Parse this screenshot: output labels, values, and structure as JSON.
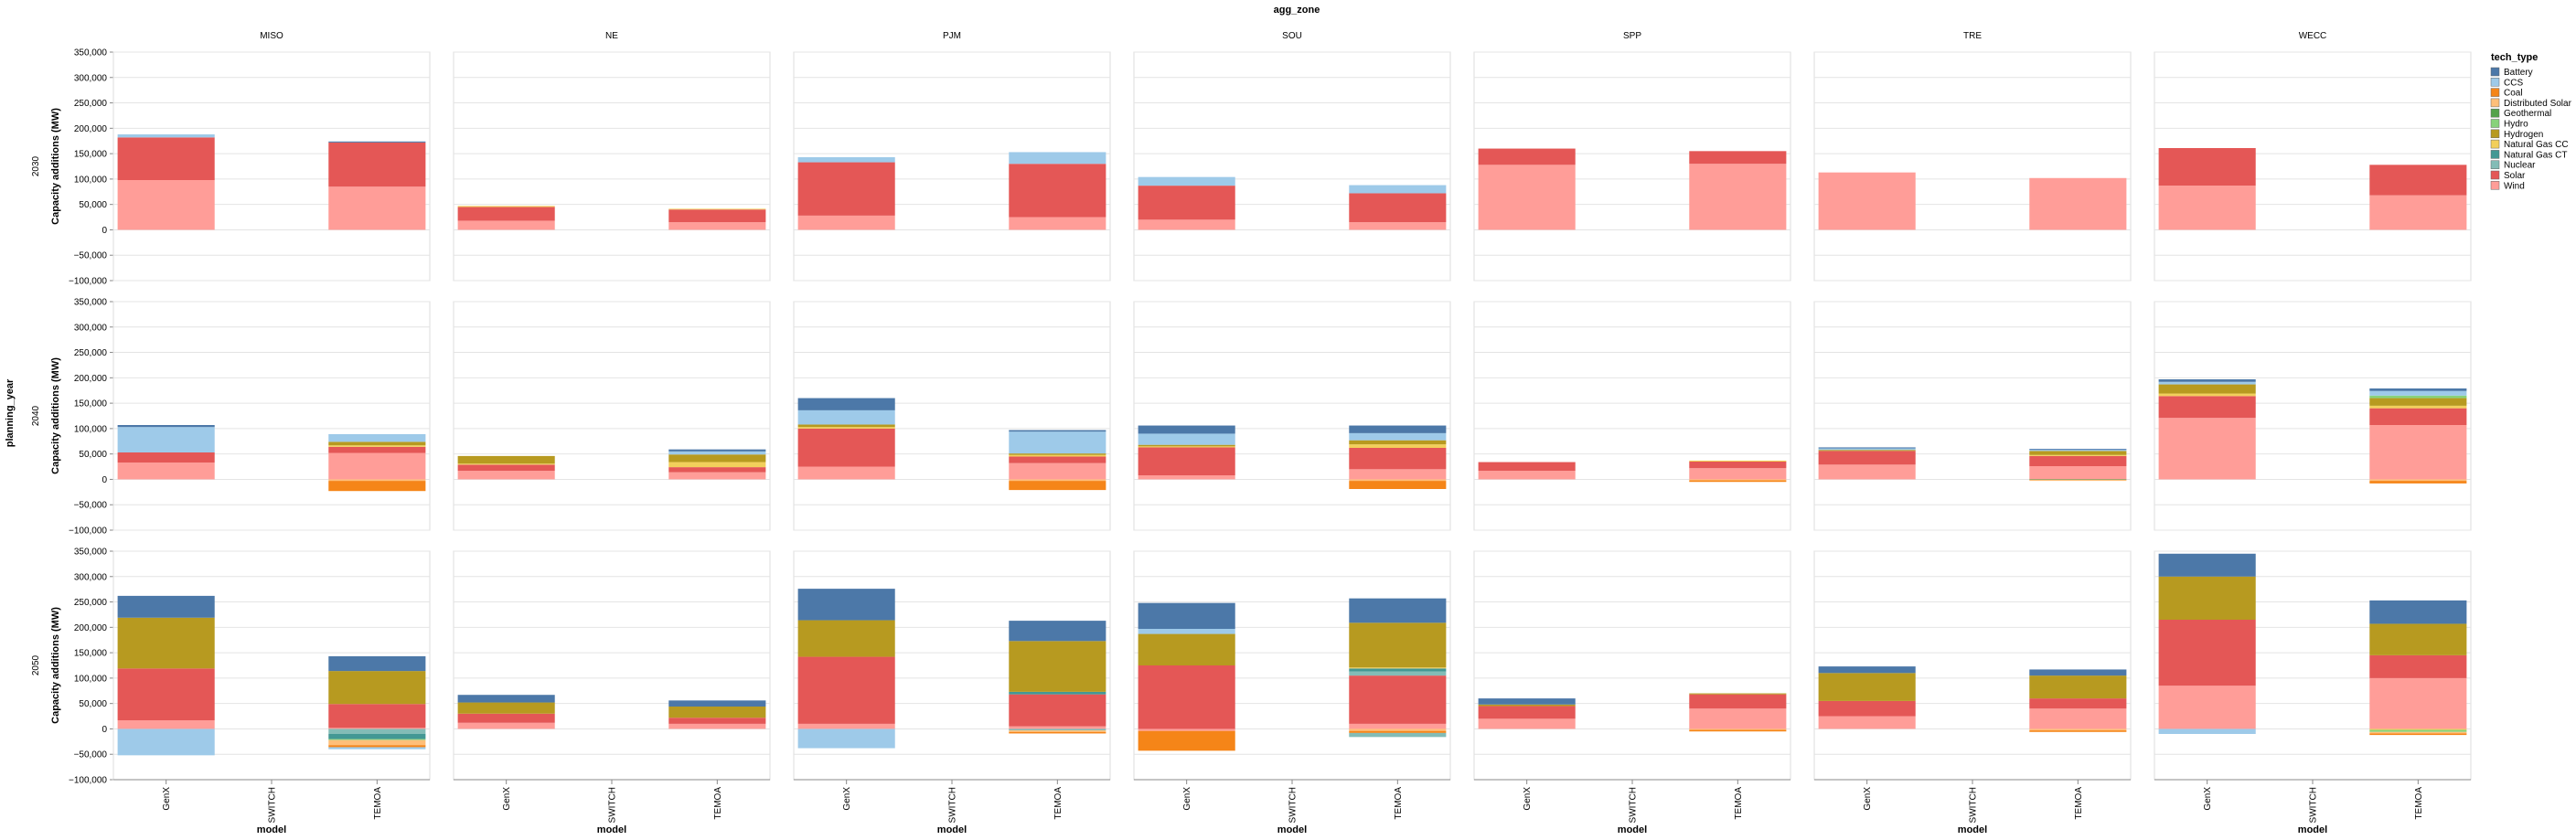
{
  "chart_data": {
    "type": "bar",
    "stacked": true,
    "column_facet_title": "agg_zone",
    "row_facet_title": "planning_year",
    "zones": [
      "MISO",
      "NE",
      "PJM",
      "SOU",
      "SPP",
      "TRE",
      "WECC"
    ],
    "years": [
      "2030",
      "2040",
      "2050"
    ],
    "models": [
      "GenX",
      "SWITCH",
      "TEMOA"
    ],
    "xlabel": "model",
    "ylabel": "Capacity additions (MW)",
    "ylim": [
      -100000,
      350000
    ],
    "y_ticks": [
      "350,000",
      "300,000",
      "250,000",
      "200,000",
      "150,000",
      "100,000",
      "50,000",
      "0",
      "−50,000",
      "−100,000"
    ],
    "grid": true,
    "legend_position": "right",
    "legend_title": "tech_type",
    "tech_types": [
      {
        "name": "Battery",
        "color": "#4c78a8"
      },
      {
        "name": "CCS",
        "color": "#9ecae9"
      },
      {
        "name": "Coal",
        "color": "#f58518"
      },
      {
        "name": "Distributed Solar",
        "color": "#ffbf79"
      },
      {
        "name": "Geothermal",
        "color": "#54a24b"
      },
      {
        "name": "Hydro",
        "color": "#88d27a"
      },
      {
        "name": "Hydrogen",
        "color": "#b79a20"
      },
      {
        "name": "Natural Gas CC",
        "color": "#f2cf5b"
      },
      {
        "name": "Natural Gas CT",
        "color": "#439894"
      },
      {
        "name": "Nuclear",
        "color": "#83bcb6"
      },
      {
        "name": "Solar",
        "color": "#e45756"
      },
      {
        "name": "Wind",
        "color": "#ff9d98"
      }
    ],
    "values": {
      "2030": {
        "MISO": {
          "GenX": {
            "Wind": 98000,
            "Solar": 84000,
            "CCS": 6000
          },
          "TEMOA": {
            "Wind": 85000,
            "Solar": 87000,
            "Battery": 2000
          }
        },
        "NE": {
          "GenX": {
            "Wind": 18000,
            "Solar": 27000,
            "Natural Gas CC": 2000
          },
          "TEMOA": {
            "Wind": 15000,
            "Solar": 25000,
            "Natural Gas CC": 1500
          }
        },
        "PJM": {
          "GenX": {
            "Wind": 28000,
            "Solar": 105000,
            "CCS": 10000
          },
          "TEMOA": {
            "Wind": 25000,
            "Solar": 105000,
            "CCS": 23000
          }
        },
        "SOU": {
          "GenX": {
            "Wind": 20000,
            "Solar": 67000,
            "CCS": 17000
          },
          "TEMOA": {
            "Wind": 15000,
            "Solar": 57000,
            "CCS": 16000
          }
        },
        "SPP": {
          "GenX": {
            "Wind": 128000,
            "Solar": 32000
          },
          "TEMOA": {
            "Wind": 130000,
            "Solar": 25000
          }
        },
        "TRE": {
          "GenX": {
            "Wind": 113000
          },
          "TEMOA": {
            "Wind": 102000
          }
        },
        "WECC": {
          "GenX": {
            "Wind": 87000,
            "Solar": 74000
          },
          "TEMOA": {
            "Wind": 68000,
            "Solar": 60000
          }
        }
      },
      "2040": {
        "MISO": {
          "GenX": {
            "Wind": 33000,
            "Solar": 20000,
            "CCS": 50000,
            "Battery": 4000
          },
          "TEMOA": {
            "Wind": 52000,
            "Solar": 12000,
            "Hydrogen": 7000,
            "Natural Gas CC": 3000,
            "CCS": 15000,
            "Coal": -20000,
            "Distributed Solar": -3000
          }
        },
        "NE": {
          "GenX": {
            "Wind": 17000,
            "Solar": 12000,
            "Hydrogen": 15000,
            "Natural Gas CC": 2000
          },
          "TEMOA": {
            "Wind": 14000,
            "Solar": 10000,
            "Hydrogen": 15000,
            "Natural Gas CC": 10000,
            "CCS": 6000,
            "Battery": 4000
          }
        },
        "PJM": {
          "GenX": {
            "Wind": 25000,
            "Solar": 75000,
            "Hydrogen": 5000,
            "Natural Gas CC": 3000,
            "CCS": 28000,
            "Battery": 24000
          },
          "TEMOA": {
            "Wind": 32000,
            "Solar": 13000,
            "Hydrogen": 3000,
            "Natural Gas CC": 3000,
            "CCS": 43000,
            "Battery": 3000,
            "Coal": -18000,
            "Distributed Solar": -3000
          }
        },
        "SOU": {
          "GenX": {
            "Wind": 8000,
            "Solar": 55000,
            "Hydrogen": 3000,
            "Natural Gas CC": 2000,
            "CCS": 22000,
            "Battery": 16000
          },
          "TEMOA": {
            "Wind": 20000,
            "Solar": 42000,
            "Hydrogen": 8000,
            "Natural Gas CC": 7000,
            "CCS": 14000,
            "Battery": 15000,
            "Coal": -16000,
            "Distributed Solar": -3000
          }
        },
        "SPP": {
          "GenX": {
            "Wind": 17000,
            "Solar": 17000
          },
          "TEMOA": {
            "Wind": 22000,
            "Solar": 13000,
            "Natural Gas CC": 2000,
            "Coal": -3000,
            "Distributed Solar": -2000
          }
        },
        "TRE": {
          "GenX": {
            "Wind": 29000,
            "Solar": 27000,
            "Hydrogen": 2000,
            "CCS": 3000,
            "Battery": 2000
          },
          "TEMOA": {
            "Wind": 26000,
            "Solar": 20000,
            "Hydrogen": 8000,
            "Natural Gas CC": 2000,
            "CCS": 2000,
            "Battery": 2000,
            "Distributed Solar": -2000,
            "Geothermal": -1000
          }
        },
        "WECC": {
          "GenX": {
            "Wind": 121000,
            "Solar": 43000,
            "Hydrogen": 18000,
            "Natural Gas CC": 5000,
            "CCS": 5000,
            "Battery": 5000
          },
          "TEMOA": {
            "Hydro": 5000,
            "Wind": 107000,
            "Solar": 33000,
            "Hydrogen": 15000,
            "Natural Gas CC": 5000,
            "CCS": 9000,
            "Battery": 5000,
            "Coal": -5000,
            "Distributed Solar": -3000
          }
        }
      },
      "2050": {
        "MISO": {
          "GenX": {
            "Wind": 17000,
            "Solar": 102000,
            "Hydrogen": 100000,
            "Battery": 43000,
            "CCS": -52000
          },
          "TEMOA": {
            "Wind": 2000,
            "Solar": 47000,
            "Hydrogen": 65000,
            "Battery": 29000,
            "CCS": -4000,
            "Natural Gas CT": -10000,
            "Coal": -4000,
            "Distributed Solar": -10000,
            "Nuclear": -10000,
            "Hydro": -2000
          }
        },
        "NE": {
          "GenX": {
            "Wind": 12000,
            "Solar": 18000,
            "Hydrogen": 22000,
            "Battery": 15000
          },
          "TEMOA": {
            "Wind": 10000,
            "Solar": 12000,
            "Hydrogen": 22000,
            "Battery": 12000
          }
        },
        "PJM": {
          "GenX": {
            "Wind": 10000,
            "Solar": 132000,
            "Hydrogen": 72000,
            "Battery": 62000,
            "CCS": -38000
          },
          "TEMOA": {
            "Natural Gas CT": 5000,
            "Wind": 5000,
            "Solar": 63000,
            "Hydrogen": 100000,
            "Battery": 40000,
            "Coal": -3000,
            "Distributed Solar": -3000,
            "Nuclear": -3000
          }
        },
        "SOU": {
          "GenX": {
            "Solar": 125000,
            "CCS": 10000,
            "Hydrogen": 62000,
            "Battery": 51000,
            "Wind": -4000,
            "Coal": -39000
          },
          "TEMOA": {
            "Natural Gas CT": 6000,
            "Nuclear": 8000,
            "Wind": 10000,
            "Solar": 95000,
            "Natural Gas CC": 2000,
            "Hydrogen": 88000,
            "Battery": 48000,
            "Coal": -4000,
            "Distributed Solar": -4000,
            "Nuclear Retire": -8000
          }
        },
        "SPP": {
          "GenX": {
            "Wind": 20000,
            "Solar": 25000,
            "Hydrogen": 3000,
            "Battery": 12000
          },
          "TEMOA": {
            "Wind": 40000,
            "Solar": 28000,
            "Hydrogen": 2000,
            "Coal": -3000,
            "Distributed Solar": -2000
          }
        },
        "TRE": {
          "GenX": {
            "Wind": 25000,
            "Solar": 30000,
            "Hydrogen": 55000,
            "Battery": 13000
          },
          "TEMOA": {
            "Wind": 40000,
            "Solar": 20000,
            "Hydrogen": 45000,
            "Battery": 12000,
            "Coal": -3000,
            "Distributed Solar": -3000
          }
        },
        "WECC": {
          "GenX": {
            "Wind": 85000,
            "Solar": 130000,
            "Hydrogen": 85000,
            "Battery": 45000,
            "CCS": -10000
          },
          "TEMOA": {
            "Wind": 100000,
            "Solar": 45000,
            "Hydrogen": 62000,
            "Battery": 46000,
            "Hydro": -4000,
            "Coal": -3000,
            "Distributed Solar": -3000,
            "Natural Gas CC": -2000
          }
        }
      }
    }
  }
}
